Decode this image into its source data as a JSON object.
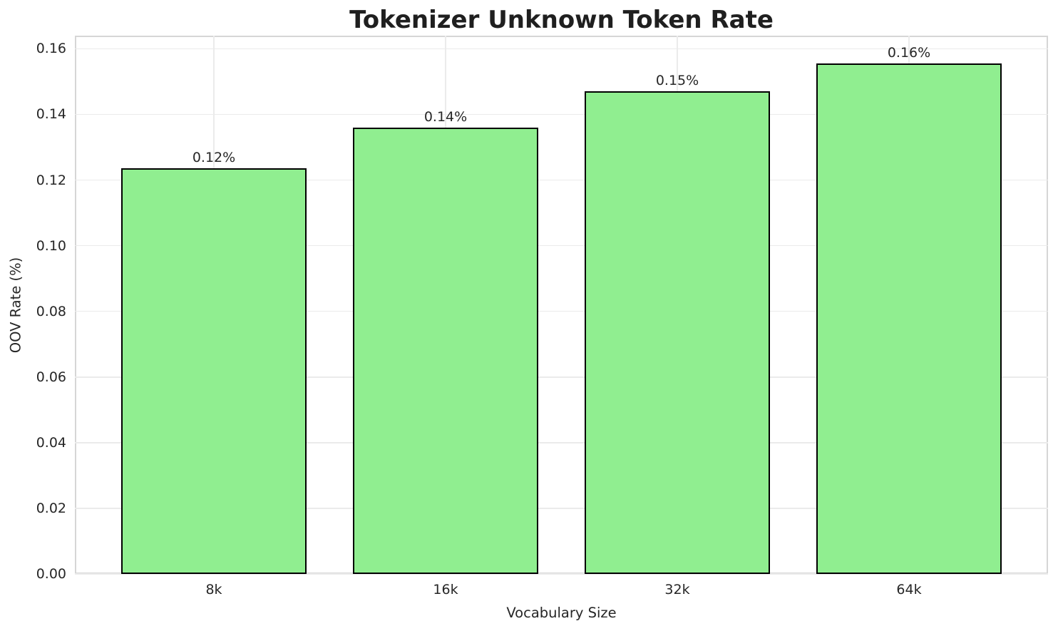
{
  "chart_data": {
    "type": "bar",
    "title": "Tokenizer Unknown Token Rate",
    "xlabel": "Vocabulary Size",
    "ylabel": "OOV Rate (%)",
    "categories": [
      "8k",
      "16k",
      "32k",
      "64k"
    ],
    "values": [
      0.1235,
      0.136,
      0.147,
      0.1556
    ],
    "bar_labels": [
      "0.12%",
      "0.14%",
      "0.15%",
      "0.16%"
    ],
    "ytick_labels": [
      "0.00",
      "0.02",
      "0.04",
      "0.06",
      "0.08",
      "0.10",
      "0.12",
      "0.14",
      "0.16"
    ],
    "yticks": [
      0.0,
      0.02,
      0.04,
      0.06,
      0.08,
      0.1,
      0.12,
      0.14,
      0.16
    ],
    "ylim": [
      0,
      0.164
    ],
    "grid": true,
    "legend_position": "none",
    "bar_color": "#90EE90",
    "bar_edge_color": "#000000",
    "grid_color": "#ebebeb",
    "text_color": "#262626",
    "background_color": "#ffffff"
  }
}
